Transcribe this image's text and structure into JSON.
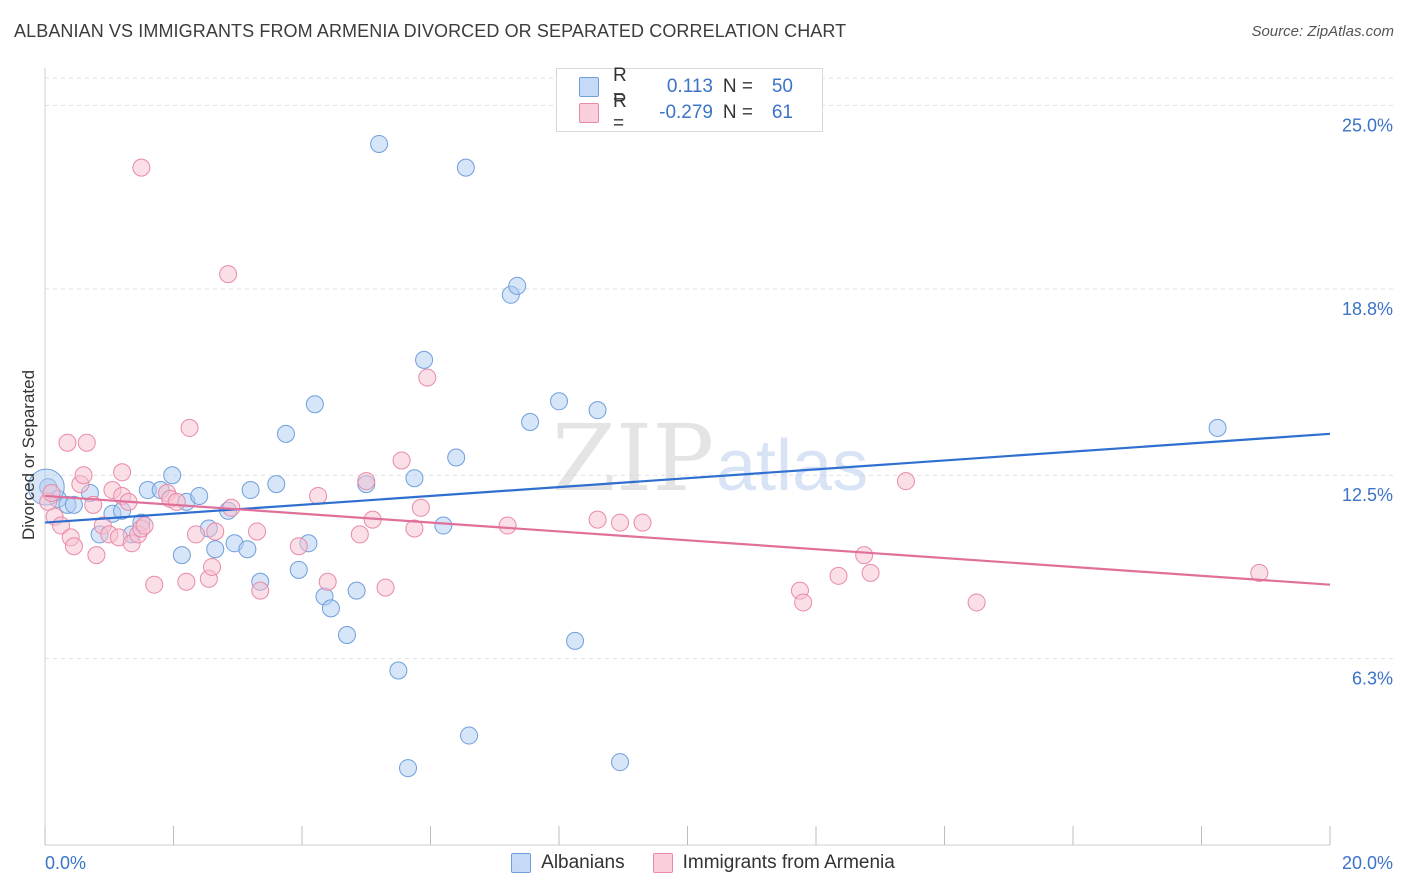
{
  "header": {
    "title": "ALBANIAN VS IMMIGRANTS FROM ARMENIA DIVORCED OR SEPARATED CORRELATION CHART",
    "source": "Source: ZipAtlas.com"
  },
  "legend": {
    "rows": [
      {
        "r_label": "R =",
        "r_value": "0.113",
        "n_label": "N =",
        "n_value": "50"
      },
      {
        "r_label": "R =",
        "r_value": "-0.279",
        "n_label": "N =",
        "n_value": "61"
      }
    ]
  },
  "bottom_legend": [
    "Albanians",
    "Immigrants from Armenia"
  ],
  "watermark": {
    "zip": "ZIP",
    "atlas": "atlas"
  },
  "colors": {
    "blue_fill": "#aecbf2",
    "blue_stroke": "#6f9fdc",
    "blue_line": "#2e6fd0",
    "pink_fill": "#f7bfd0",
    "pink_stroke": "#e98aa8",
    "pink_line": "#e0709a",
    "tick_label": "#3b73c8",
    "grid": "#e2e2e2"
  },
  "chart_data": {
    "type": "scatter",
    "title": "ALBANIAN VS IMMIGRANTS FROM ARMENIA DIVORCED OR SEPARATED CORRELATION CHART",
    "xlabel": "",
    "ylabel": "Divorced or Separated",
    "xlim": [
      0,
      20
    ],
    "ylim": [
      0,
      26.2
    ],
    "x_tick_labels": [
      "0.0%",
      "20.0%"
    ],
    "y_ticks": [
      6.3,
      12.5,
      18.8,
      25.0
    ],
    "y_tick_labels": [
      "6.3%",
      "12.5%",
      "18.8%",
      "25.0%"
    ],
    "grid": "horizontal dashed",
    "legend_position": "top-center",
    "series": [
      {
        "name": "Albanians",
        "color": "#aecbf2",
        "R": 0.113,
        "N": 50,
        "trend": {
          "x": [
            0,
            20
          ],
          "y": [
            10.9,
            13.9
          ]
        },
        "points": [
          [
            0.05,
            12.1
          ],
          [
            0.2,
            11.7
          ],
          [
            0.35,
            11.5
          ],
          [
            0.45,
            11.5
          ],
          [
            0.7,
            11.9
          ],
          [
            0.85,
            10.5
          ],
          [
            1.05,
            11.2
          ],
          [
            1.2,
            11.3
          ],
          [
            1.35,
            10.5
          ],
          [
            1.5,
            10.9
          ],
          [
            1.6,
            12.0
          ],
          [
            1.8,
            12.0
          ],
          [
            1.98,
            12.5
          ],
          [
            2.2,
            11.6
          ],
          [
            2.13,
            9.8
          ],
          [
            2.4,
            11.8
          ],
          [
            2.55,
            10.7
          ],
          [
            2.65,
            10.0
          ],
          [
            2.85,
            11.3
          ],
          [
            2.95,
            10.2
          ],
          [
            3.15,
            10.0
          ],
          [
            3.2,
            12.0
          ],
          [
            3.35,
            8.9
          ],
          [
            3.6,
            12.2
          ],
          [
            3.75,
            13.9
          ],
          [
            3.95,
            9.3
          ],
          [
            4.1,
            10.2
          ],
          [
            4.2,
            14.9
          ],
          [
            4.35,
            8.4
          ],
          [
            4.45,
            8.0
          ],
          [
            4.7,
            7.1
          ],
          [
            4.85,
            8.6
          ],
          [
            5.0,
            12.2
          ],
          [
            5.2,
            23.7
          ],
          [
            5.5,
            5.9
          ],
          [
            5.65,
            2.6
          ],
          [
            5.75,
            12.4
          ],
          [
            5.9,
            16.4
          ],
          [
            6.2,
            10.8
          ],
          [
            6.4,
            13.1
          ],
          [
            6.55,
            22.9
          ],
          [
            6.6,
            3.7
          ],
          [
            7.25,
            18.6
          ],
          [
            7.35,
            18.9
          ],
          [
            7.55,
            14.3
          ],
          [
            8.0,
            15.0
          ],
          [
            8.25,
            6.9
          ],
          [
            8.6,
            14.7
          ],
          [
            8.95,
            2.8
          ],
          [
            18.25,
            14.1
          ]
        ]
      },
      {
        "name": "Immigrants from Armenia",
        "color": "#f7bfd0",
        "R": -0.279,
        "N": 61,
        "trend": {
          "x": [
            0,
            20
          ],
          "y": [
            11.8,
            8.8
          ]
        },
        "points": [
          [
            0.05,
            11.6
          ],
          [
            0.1,
            11.9
          ],
          [
            0.15,
            11.1
          ],
          [
            0.25,
            10.8
          ],
          [
            0.35,
            13.6
          ],
          [
            0.4,
            10.4
          ],
          [
            0.45,
            10.1
          ],
          [
            0.55,
            12.2
          ],
          [
            0.6,
            12.5
          ],
          [
            0.65,
            13.6
          ],
          [
            0.75,
            11.5
          ],
          [
            0.8,
            9.8
          ],
          [
            0.9,
            10.8
          ],
          [
            1.0,
            10.5
          ],
          [
            1.05,
            12.0
          ],
          [
            1.15,
            10.4
          ],
          [
            1.2,
            11.8
          ],
          [
            1.3,
            11.6
          ],
          [
            1.2,
            12.6
          ],
          [
            1.35,
            10.2
          ],
          [
            1.45,
            10.5
          ],
          [
            1.5,
            10.7
          ],
          [
            1.55,
            10.8
          ],
          [
            1.5,
            22.9
          ],
          [
            1.7,
            8.8
          ],
          [
            1.9,
            11.9
          ],
          [
            1.95,
            11.7
          ],
          [
            2.05,
            11.6
          ],
          [
            2.2,
            8.9
          ],
          [
            2.25,
            14.1
          ],
          [
            2.35,
            10.5
          ],
          [
            2.55,
            9.0
          ],
          [
            2.6,
            9.4
          ],
          [
            2.65,
            10.6
          ],
          [
            2.9,
            11.4
          ],
          [
            2.85,
            19.3
          ],
          [
            3.35,
            8.6
          ],
          [
            3.3,
            10.6
          ],
          [
            3.95,
            10.1
          ],
          [
            4.25,
            11.8
          ],
          [
            4.4,
            8.9
          ],
          [
            4.9,
            10.5
          ],
          [
            5.0,
            12.3
          ],
          [
            5.1,
            11.0
          ],
          [
            5.3,
            8.7
          ],
          [
            5.55,
            13.0
          ],
          [
            5.75,
            10.7
          ],
          [
            5.85,
            11.4
          ],
          [
            5.95,
            15.8
          ],
          [
            7.2,
            10.8
          ],
          [
            8.6,
            11.0
          ],
          [
            8.95,
            10.9
          ],
          [
            9.3,
            10.9
          ],
          [
            11.75,
            8.6
          ],
          [
            11.8,
            8.2
          ],
          [
            12.35,
            9.1
          ],
          [
            12.75,
            9.8
          ],
          [
            12.85,
            9.2
          ],
          [
            13.4,
            12.3
          ],
          [
            14.5,
            8.2
          ],
          [
            18.9,
            9.2
          ]
        ]
      }
    ]
  }
}
